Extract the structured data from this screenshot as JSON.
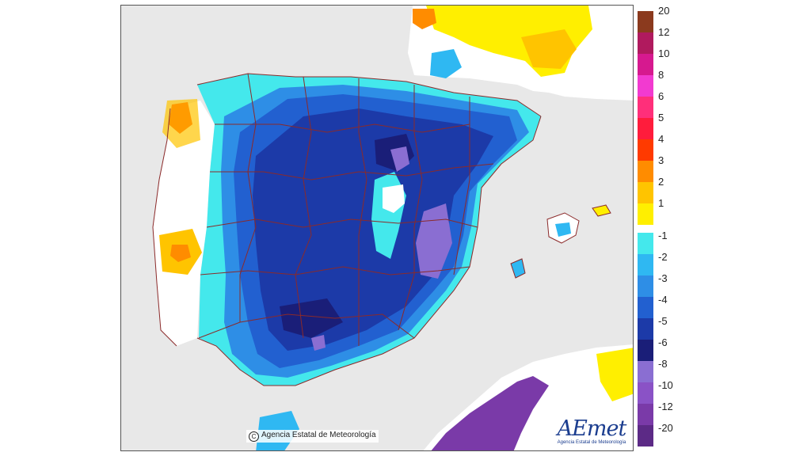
{
  "copyright": "Agencia Estatal de Meteorología",
  "logo": {
    "text": "AEmet",
    "subtitle": "Agencia Estatal de Meteorología"
  },
  "legend": {
    "positive": [
      {
        "label": "20",
        "color": "#8b3a1e"
      },
      {
        "label": "12",
        "color": "#b01a5e"
      },
      {
        "label": "10",
        "color": "#d6198f"
      },
      {
        "label": "8",
        "color": "#f23ad0"
      },
      {
        "label": "6",
        "color": "#ff2f7a"
      },
      {
        "label": "5",
        "color": "#ff1c3c"
      },
      {
        "label": "4",
        "color": "#ff3a00"
      },
      {
        "label": "3",
        "color": "#ff8c00"
      },
      {
        "label": "2",
        "color": "#ffc400"
      },
      {
        "label": "1",
        "color": "#ffef00"
      }
    ],
    "negative": [
      {
        "label": "-1",
        "color": "#44e8ec"
      },
      {
        "label": "-2",
        "color": "#2fb8f2"
      },
      {
        "label": "-3",
        "color": "#2e8ee6"
      },
      {
        "label": "-4",
        "color": "#2260d0"
      },
      {
        "label": "-5",
        "color": "#1c3aa8"
      },
      {
        "label": "-6",
        "color": "#1a1e78"
      },
      {
        "label": "-8",
        "color": "#8a6ed2"
      },
      {
        "label": "-10",
        "color": "#8a52c6"
      },
      {
        "label": "-12",
        "color": "#7a3aa8"
      },
      {
        "label": "-20",
        "color": "#5c2a86"
      }
    ]
  }
}
